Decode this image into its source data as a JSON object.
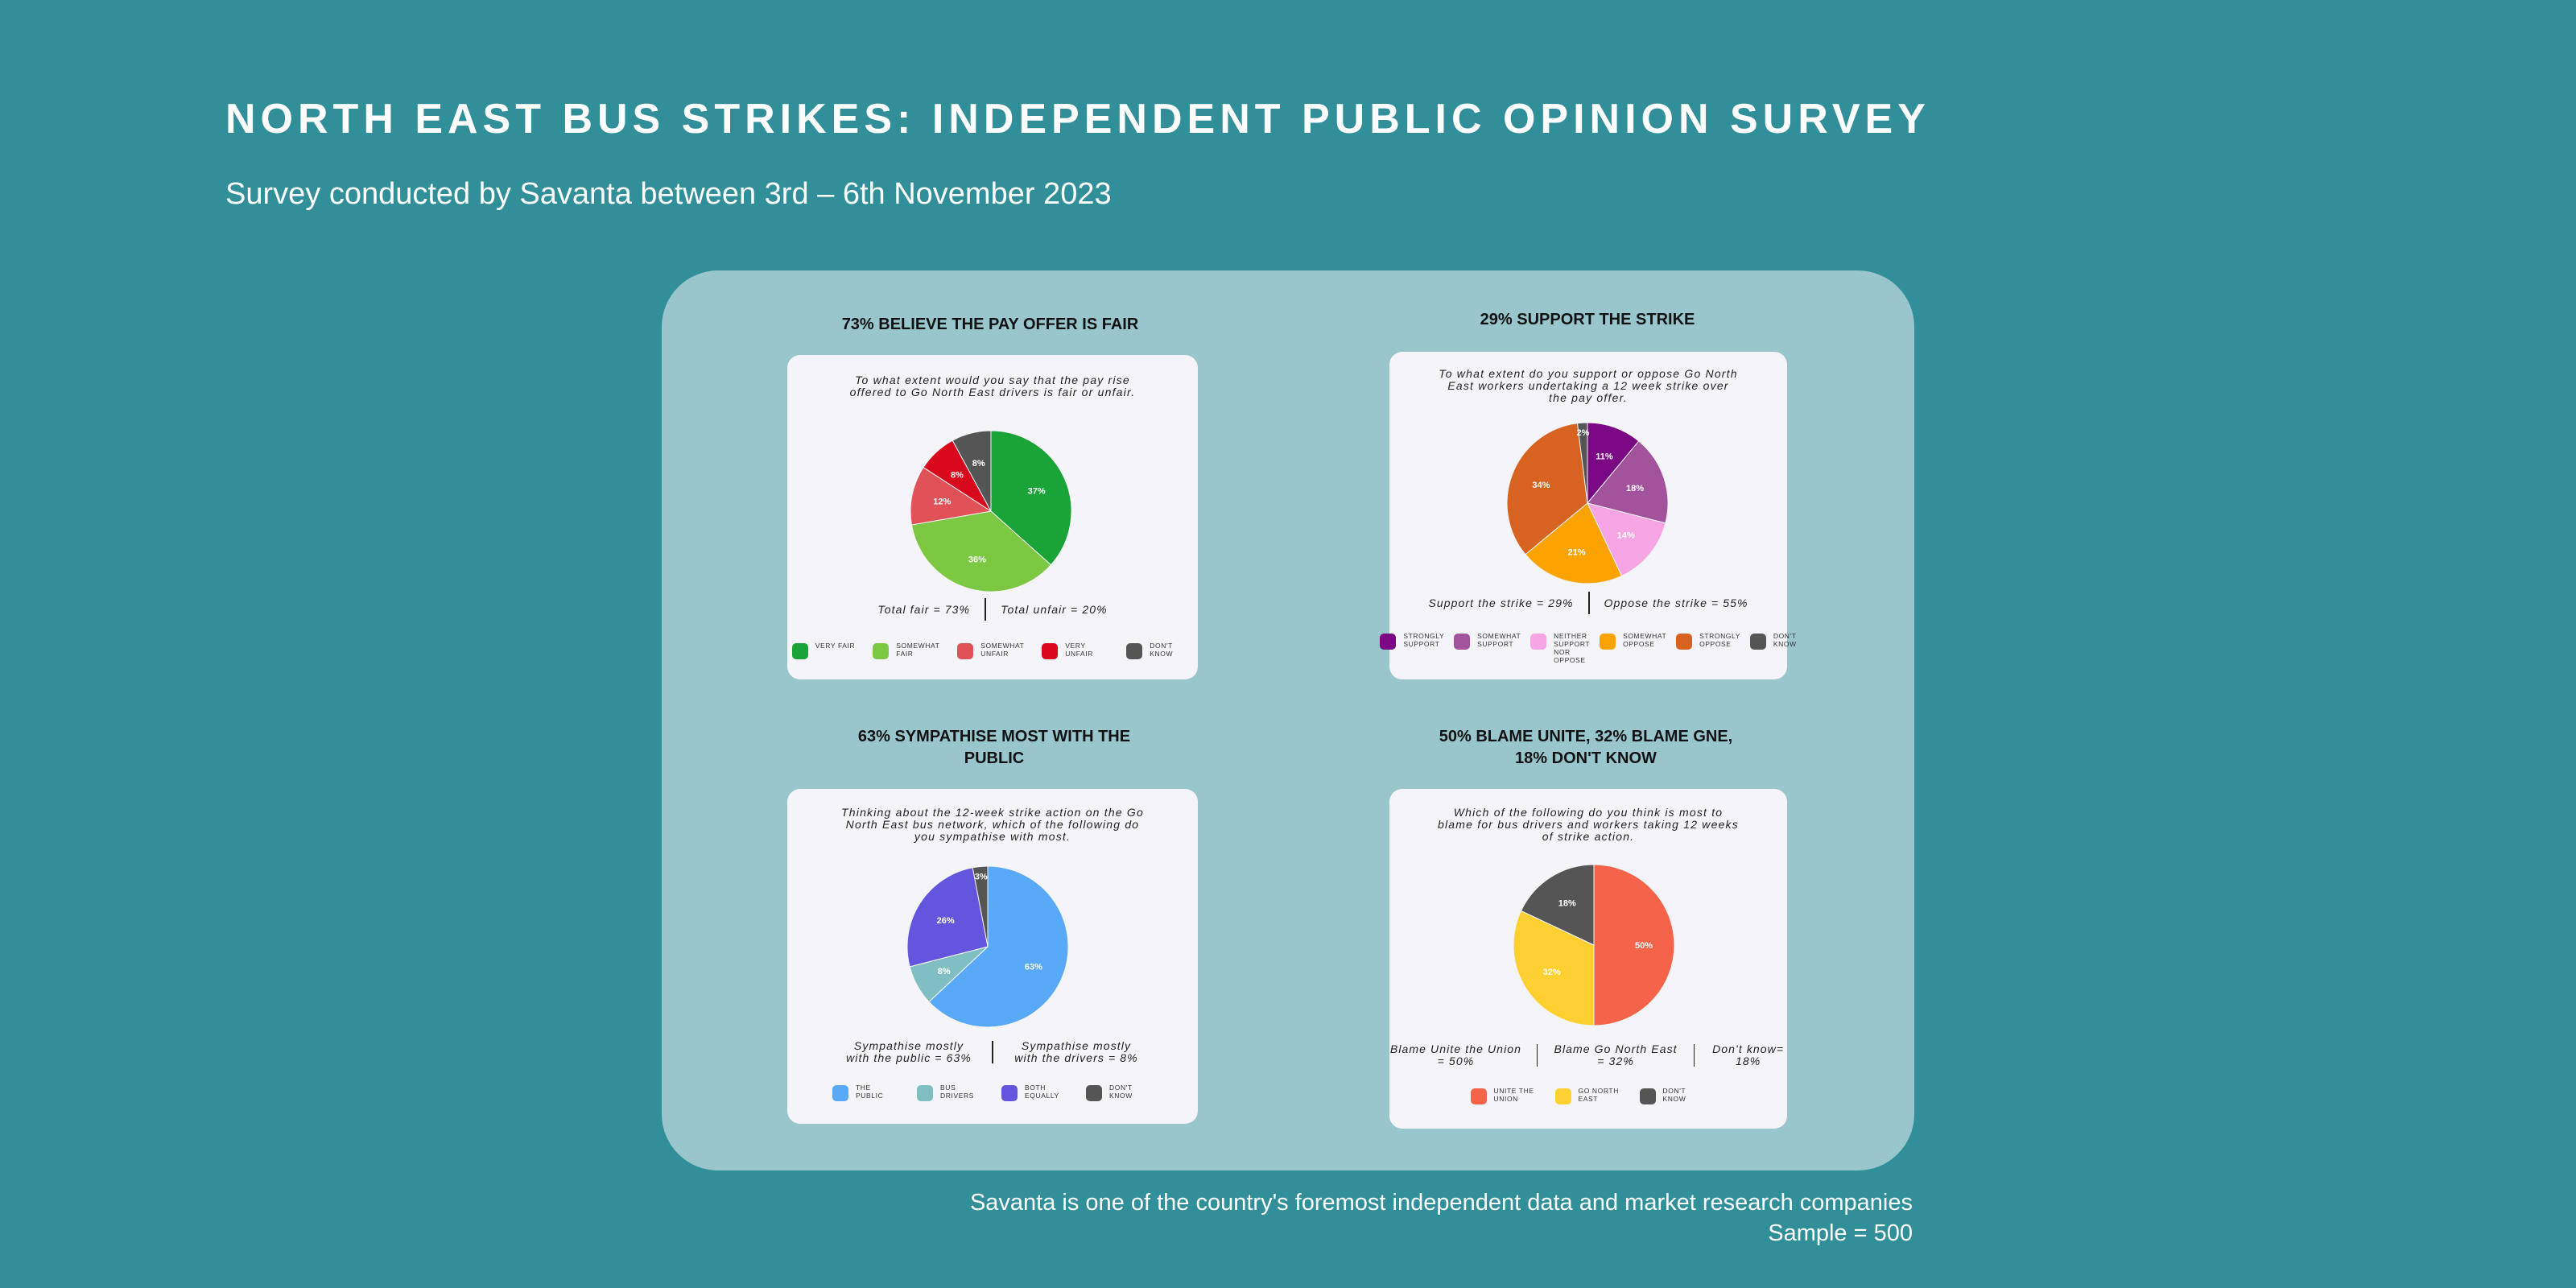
{
  "page": {
    "title": "NORTH EAST BUS STRIKES: INDEPENDENT PUBLIC OPINION SURVEY",
    "subtitle": "Survey conducted by Savanta between 3rd – 6th November 2023",
    "footer_line1": "Savanta is one of the country's foremost independent data and market research companies",
    "footer_line2": "Sample = 500"
  },
  "chart_data": [
    {
      "type": "pie",
      "title": "73% BELIEVE THE PAY OFFER IS FAIR",
      "question": "To what extent would you say that the pay rise offered to Go North East drivers is fair or unfair.",
      "slices": [
        {
          "label": "VERY FAIR",
          "value": 37,
          "display": "37%",
          "color": "#1aa336"
        },
        {
          "label": "SOMEWHAT FAIR",
          "value": 36,
          "display": "36%",
          "color": "#7dc843"
        },
        {
          "label": "SOMEWHAT UNFAIR",
          "value": 12,
          "display": "12%",
          "color": "#e05158"
        },
        {
          "label": "VERY UNFAIR",
          "value": 8,
          "display": "8%",
          "color": "#d9091d"
        },
        {
          "label": "DON'T KNOW",
          "value": 8,
          "display": "8%",
          "color": "#555555"
        }
      ],
      "totals": [
        "Total fair = 73%",
        "Total unfair = 20%"
      ]
    },
    {
      "type": "pie",
      "title": "29% SUPPORT THE STRIKE",
      "question": "To what extent do you support or oppose Go North East workers undertaking a 12 week strike over the pay offer.",
      "slices": [
        {
          "label": "STRONGLY SUPPORT",
          "value": 11,
          "display": "11%",
          "color": "#7a0783"
        },
        {
          "label": "SOMEWHAT SUPPORT",
          "value": 18,
          "display": "18%",
          "color": "#a2539c"
        },
        {
          "label": "NEITHER SUPPORT NOR OPPOSE",
          "value": 14,
          "display": "14%",
          "color": "#f7a5e4"
        },
        {
          "label": "SOMEWHAT OPPOSE",
          "value": 21,
          "display": "21%",
          "color": "#fba300"
        },
        {
          "label": "STRONGLY OPPOSE",
          "value": 34,
          "display": "34%",
          "color": "#d8621f"
        },
        {
          "label": "DON'T KNOW",
          "value": 2,
          "display": "2%",
          "color": "#555555"
        }
      ],
      "totals": [
        "Support the strike = 29%",
        "Oppose the strike = 55%"
      ]
    },
    {
      "type": "pie",
      "title": "63% SYMPATHISE MOST WITH THE PUBLIC",
      "question": "Thinking about the 12-week strike action on the Go North East bus network, which of the following do you sympathise with most.",
      "slices": [
        {
          "label": "THE PUBLIC",
          "value": 63,
          "display": "63%",
          "color": "#58a9f7"
        },
        {
          "label": "BUS DRIVERS",
          "value": 8,
          "display": "8%",
          "color": "#7fbfc4"
        },
        {
          "label": "BOTH EQUALLY",
          "value": 26,
          "display": "26%",
          "color": "#6455de"
        },
        {
          "label": "DON'T KNOW",
          "value": 3,
          "display": "3%",
          "color": "#555555"
        }
      ],
      "totals": [
        "Sympathise mostly with the public = 63%",
        "Sympathise mostly with the drivers = 8%"
      ]
    },
    {
      "type": "pie",
      "title": "50% BLAME UNITE, 32% BLAME GNE, 18% DON'T KNOW",
      "question": "Which of the following do you think is most to blame for bus drivers and workers taking 12 weeks of strike action.",
      "slices": [
        {
          "label": "UNITE THE UNION",
          "value": 50,
          "display": "50%",
          "color": "#f56448"
        },
        {
          "label": "GO NORTH EAST",
          "value": 32,
          "display": "32%",
          "color": "#ffd02f"
        },
        {
          "label": "DON'T KNOW",
          "value": 18,
          "display": "18%",
          "color": "#555555"
        }
      ],
      "totals": [
        "Blame Unite the Union = 50%",
        "Blame Go North East = 32%",
        "Don't know= 18%"
      ]
    }
  ]
}
